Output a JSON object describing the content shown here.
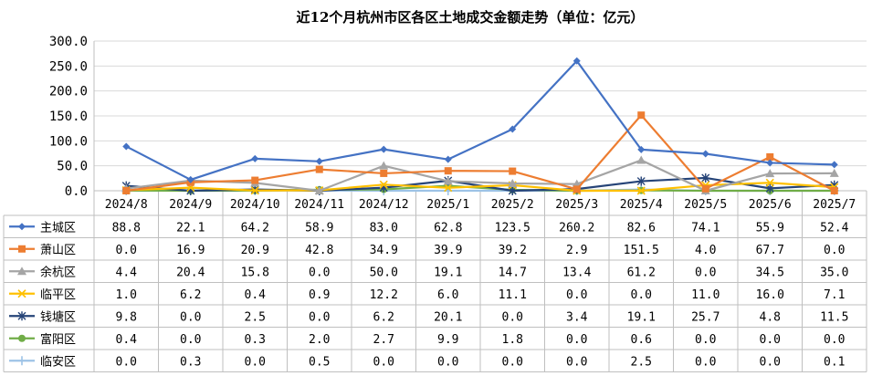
{
  "chart_data": {
    "type": "line",
    "title": "近12个月杭州市区各区土地成交金额走势（单位：亿元）",
    "categories": [
      "2024/8",
      "2024/9",
      "2024/10",
      "2024/11",
      "2024/12",
      "2025/1",
      "2025/2",
      "2025/3",
      "2025/4",
      "2025/5",
      "2025/6",
      "2025/7"
    ],
    "ylim": [
      0,
      300
    ],
    "yticks": [
      "300.0",
      "250.0",
      "200.0",
      "150.0",
      "100.0",
      "50.0",
      "0.0"
    ],
    "grid": true,
    "legend": "data-table",
    "series": [
      {
        "name": "主城区",
        "color": "#4472C4",
        "marker": "diamond",
        "values": [
          88.8,
          22.1,
          64.2,
          58.9,
          83.0,
          62.8,
          123.5,
          260.2,
          82.6,
          74.1,
          55.9,
          52.4
        ],
        "labels": [
          "88.8",
          "22.1",
          "64.2",
          "58.9",
          "83.0",
          "62.8",
          "123.5",
          "260.2",
          "82.6",
          "74.1",
          "55.9",
          "52.4"
        ]
      },
      {
        "name": "萧山区",
        "color": "#ED7D31",
        "marker": "square",
        "values": [
          0.0,
          16.9,
          20.9,
          42.8,
          34.9,
          39.9,
          39.2,
          2.9,
          151.5,
          4.0,
          67.7,
          0.0
        ],
        "labels": [
          "0.0",
          "16.9",
          "20.9",
          "42.8",
          "34.9",
          "39.9",
          "39.2",
          "2.9",
          "151.5",
          "4.0",
          "67.7",
          "0.0"
        ]
      },
      {
        "name": "余杭区",
        "color": "#A5A5A5",
        "marker": "triangle",
        "values": [
          4.4,
          20.4,
          15.8,
          0.0,
          50.0,
          19.1,
          14.7,
          13.4,
          61.2,
          0.0,
          34.5,
          35.0
        ],
        "labels": [
          "4.4",
          "20.4",
          "15.8",
          "0.0",
          "50.0",
          "19.1",
          "14.7",
          "13.4",
          "61.2",
          "0.0",
          "34.5",
          "35.0"
        ]
      },
      {
        "name": "临平区",
        "color": "#FFC000",
        "marker": "x",
        "values": [
          1.0,
          6.2,
          0.4,
          0.9,
          12.2,
          6.0,
          11.1,
          0.0,
          0.0,
          11.0,
          16.0,
          7.1
        ],
        "labels": [
          "1.0",
          "6.2",
          "0.4",
          "0.9",
          "12.2",
          "6.0",
          "11.1",
          "0.0",
          "0.0",
          "11.0",
          "16.0",
          "7.1"
        ]
      },
      {
        "name": "钱塘区",
        "color": "#264478",
        "marker": "star",
        "values": [
          9.8,
          0.0,
          2.5,
          0.0,
          6.2,
          20.1,
          0.0,
          3.4,
          19.1,
          25.7,
          4.8,
          11.5
        ],
        "labels": [
          "9.8",
          "0.0",
          "2.5",
          "0.0",
          "6.2",
          "20.1",
          "0.0",
          "3.4",
          "19.1",
          "25.7",
          "4.8",
          "11.5"
        ]
      },
      {
        "name": "富阳区",
        "color": "#70AD47",
        "marker": "circle",
        "values": [
          0.4,
          0.0,
          0.3,
          2.0,
          2.7,
          9.9,
          1.8,
          0.0,
          0.6,
          0.0,
          0.0,
          0.0
        ],
        "labels": [
          "0.4",
          "0.0",
          "0.3",
          "2.0",
          "2.7",
          "9.9",
          "1.8",
          "0.0",
          "0.6",
          "0.0",
          "0.0",
          "0.0"
        ]
      },
      {
        "name": "临安区",
        "color": "#9DC3E6",
        "marker": "plus",
        "values": [
          0.0,
          0.3,
          0.0,
          0.5,
          0.0,
          0.0,
          0.0,
          0.0,
          2.5,
          0.0,
          0.0,
          0.1
        ],
        "labels": [
          "0.0",
          "0.3",
          "0.0",
          "0.5",
          "0.0",
          "0.0",
          "0.0",
          "0.0",
          "2.5",
          "0.0",
          "0.0",
          "0.1"
        ]
      }
    ]
  }
}
